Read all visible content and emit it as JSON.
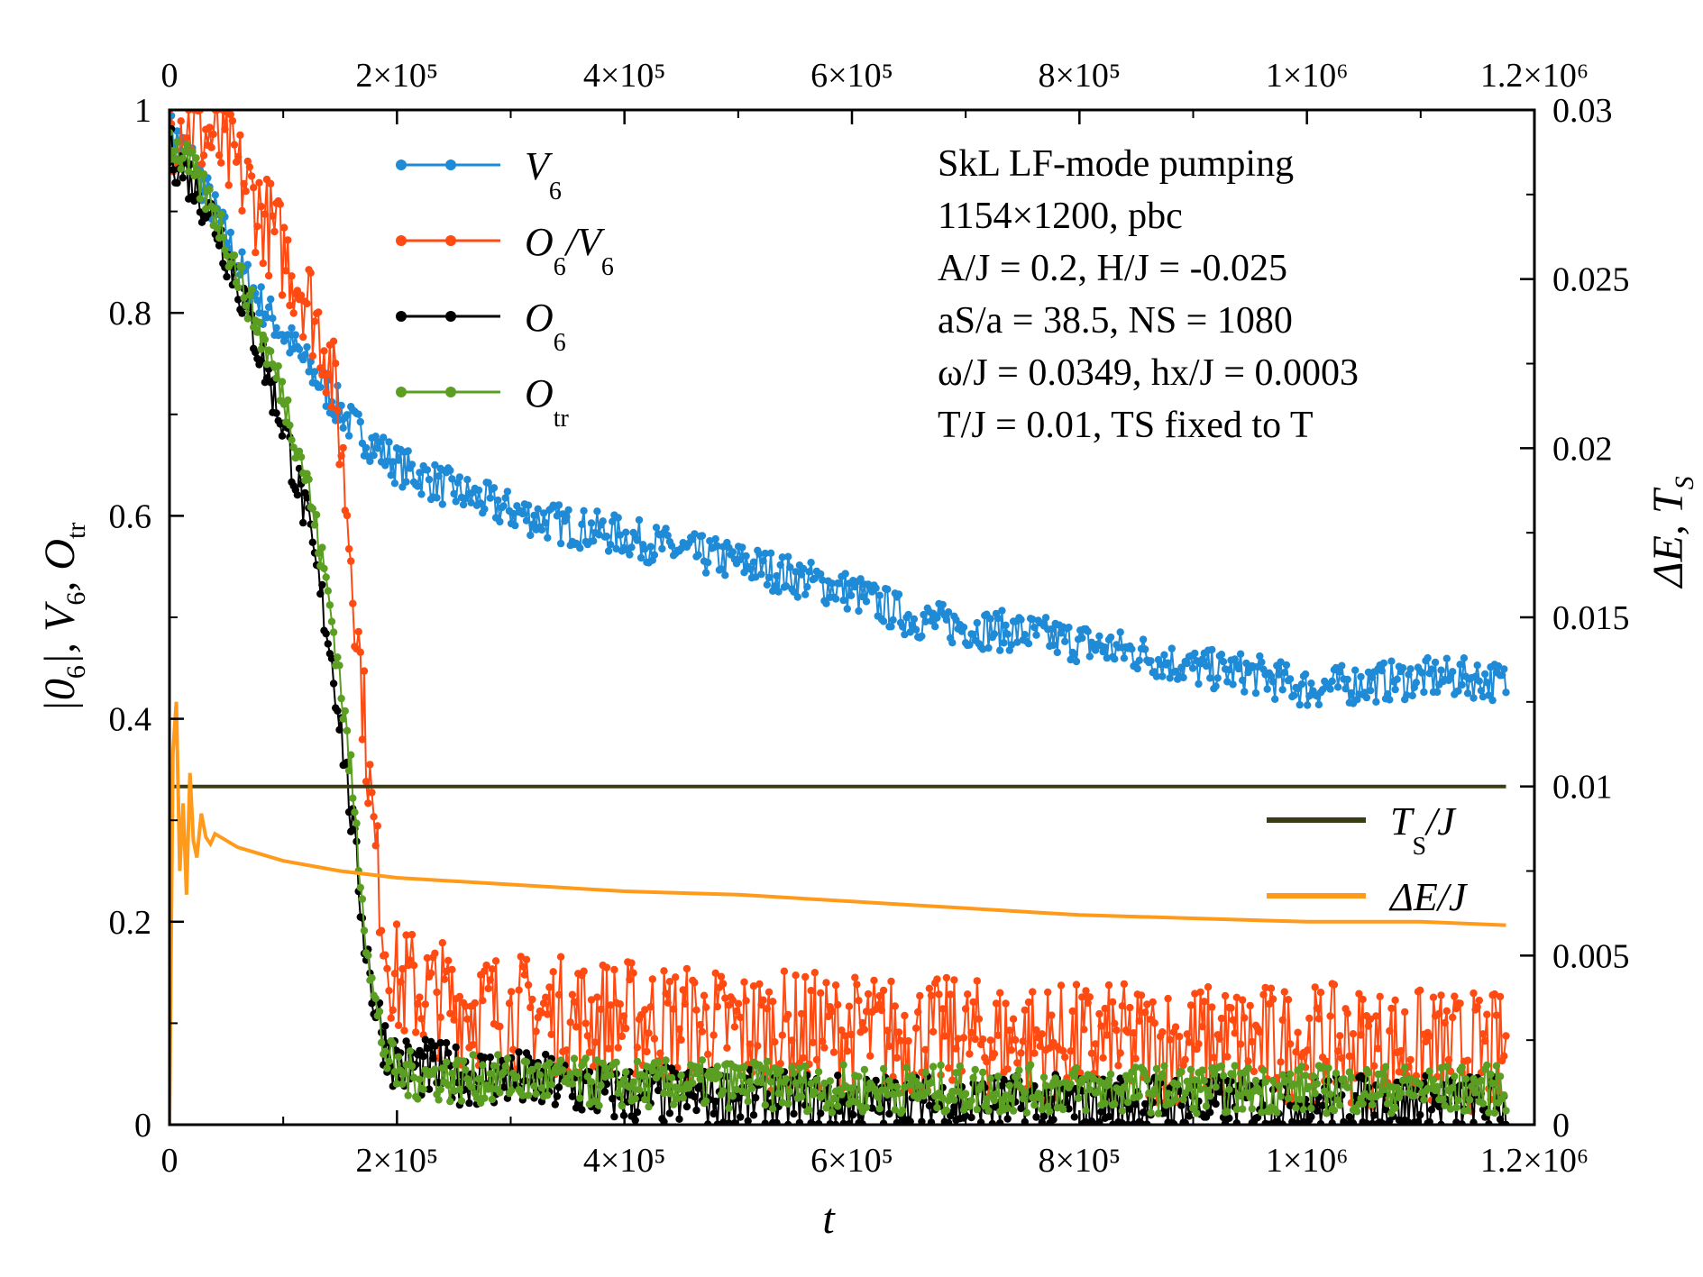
{
  "chart_data": {
    "type": "line",
    "x_axis": {
      "label": "t",
      "range": [
        0,
        1200000
      ],
      "ticks": [
        0,
        200000,
        400000,
        600000,
        800000,
        1000000,
        1200000
      ],
      "tick_labels": [
        "0",
        "2×10⁵",
        "4×10⁵",
        "6×10⁵",
        "8×10⁵",
        "1×10⁶",
        "1.2×10⁶"
      ]
    },
    "y_left": {
      "label": "|O6|, V6, Otr",
      "label_parts": [
        "|0",
        "6",
        "|, V",
        "6",
        ", O",
        "tr"
      ],
      "range": [
        0,
        1
      ],
      "ticks": [
        0,
        0.2,
        0.4,
        0.6,
        0.8,
        1
      ],
      "tick_labels": [
        "0",
        "0.2",
        "0.4",
        "0.6",
        "0.8",
        "1"
      ]
    },
    "y_right": {
      "label": "ΔE, TS",
      "label_parts": [
        "ΔE, T",
        "S"
      ],
      "range": [
        0,
        0.03
      ],
      "ticks": [
        0,
        0.005,
        0.01,
        0.015,
        0.02,
        0.025,
        0.03
      ],
      "tick_labels": [
        "0",
        "0.005",
        "0.01",
        "0.015",
        "0.02",
        "0.025",
        "0.03"
      ]
    },
    "annotations": [
      "SkL LF-mode pumping",
      "1154×1200, pbc",
      "A/J = 0.2, H/J = -0.025",
      "aS/a = 38.5, NS = 1080",
      "ω/J = 0.0349, hx/J = 0.0003",
      "T/J = 0.01, TS fixed to T"
    ],
    "series": [
      {
        "name": "V6",
        "label_main": "V",
        "label_sub": "6",
        "axis": "left",
        "color": "#1f8ad6",
        "style": "dots",
        "points": [
          [
            0,
            0.98
          ],
          [
            20000,
            0.95
          ],
          [
            40000,
            0.9
          ],
          [
            60000,
            0.85
          ],
          [
            80000,
            0.81
          ],
          [
            100000,
            0.78
          ],
          [
            120000,
            0.75
          ],
          [
            140000,
            0.72
          ],
          [
            160000,
            0.69
          ],
          [
            180000,
            0.67
          ],
          [
            200000,
            0.65
          ],
          [
            250000,
            0.625
          ],
          [
            300000,
            0.605
          ],
          [
            350000,
            0.59
          ],
          [
            400000,
            0.58
          ],
          [
            450000,
            0.565
          ],
          [
            500000,
            0.555
          ],
          [
            550000,
            0.54
          ],
          [
            600000,
            0.525
          ],
          [
            650000,
            0.5
          ],
          [
            700000,
            0.49
          ],
          [
            750000,
            0.485
          ],
          [
            800000,
            0.475
          ],
          [
            850000,
            0.465
          ],
          [
            900000,
            0.45
          ],
          [
            950000,
            0.445
          ],
          [
            1000000,
            0.43
          ],
          [
            1050000,
            0.435
          ],
          [
            1100000,
            0.44
          ],
          [
            1150000,
            0.44
          ],
          [
            1175000,
            0.435
          ]
        ],
        "noise": 0.02
      },
      {
        "name": "O6/V6",
        "label_main": "O",
        "label_sub": "6",
        "label_tail": "/V",
        "label_sub2": "6",
        "axis": "left",
        "color": "#ff4a12",
        "style": "dots",
        "points": [
          [
            0,
            0.99
          ],
          [
            20000,
            0.985
          ],
          [
            40000,
            0.97
          ],
          [
            60000,
            0.94
          ],
          [
            80000,
            0.9
          ],
          [
            100000,
            0.86
          ],
          [
            120000,
            0.82
          ],
          [
            140000,
            0.76
          ],
          [
            150000,
            0.68
          ],
          [
            160000,
            0.56
          ],
          [
            170000,
            0.42
          ],
          [
            180000,
            0.28
          ],
          [
            190000,
            0.18
          ],
          [
            200000,
            0.14
          ],
          [
            250000,
            0.12
          ],
          [
            300000,
            0.11
          ],
          [
            400000,
            0.105
          ],
          [
            500000,
            0.095
          ],
          [
            600000,
            0.09
          ],
          [
            700000,
            0.085
          ],
          [
            800000,
            0.08
          ],
          [
            900000,
            0.08
          ],
          [
            1000000,
            0.08
          ],
          [
            1100000,
            0.075
          ],
          [
            1175000,
            0.07
          ]
        ],
        "noise": 0.05
      },
      {
        "name": "O6",
        "label_main": "O",
        "label_sub": "6",
        "axis": "left",
        "color": "#000000",
        "style": "dots",
        "points": [
          [
            0,
            0.96
          ],
          [
            20000,
            0.93
          ],
          [
            40000,
            0.89
          ],
          [
            60000,
            0.83
          ],
          [
            80000,
            0.76
          ],
          [
            100000,
            0.69
          ],
          [
            120000,
            0.6
          ],
          [
            140000,
            0.48
          ],
          [
            150000,
            0.4
          ],
          [
            160000,
            0.3
          ],
          [
            170000,
            0.2
          ],
          [
            180000,
            0.12
          ],
          [
            190000,
            0.08
          ],
          [
            200000,
            0.06
          ],
          [
            250000,
            0.05
          ],
          [
            300000,
            0.045
          ],
          [
            400000,
            0.03
          ],
          [
            500000,
            0.025
          ],
          [
            600000,
            0.02
          ],
          [
            700000,
            0.02
          ],
          [
            800000,
            0.02
          ],
          [
            900000,
            0.02
          ],
          [
            1000000,
            0.02
          ],
          [
            1100000,
            0.02
          ],
          [
            1175000,
            0.02
          ]
        ],
        "noise": 0.025
      },
      {
        "name": "Otr",
        "label_main": "O",
        "label_sub": "tr",
        "axis": "left",
        "color": "#5a9e22",
        "style": "dots",
        "points": [
          [
            0,
            0.97
          ],
          [
            20000,
            0.94
          ],
          [
            40000,
            0.9
          ],
          [
            60000,
            0.84
          ],
          [
            80000,
            0.78
          ],
          [
            100000,
            0.72
          ],
          [
            120000,
            0.64
          ],
          [
            140000,
            0.52
          ],
          [
            150000,
            0.44
          ],
          [
            160000,
            0.34
          ],
          [
            170000,
            0.22
          ],
          [
            180000,
            0.12
          ],
          [
            190000,
            0.07
          ],
          [
            200000,
            0.05
          ],
          [
            250000,
            0.045
          ],
          [
            300000,
            0.045
          ],
          [
            400000,
            0.04
          ],
          [
            500000,
            0.04
          ],
          [
            600000,
            0.035
          ],
          [
            700000,
            0.035
          ],
          [
            800000,
            0.035
          ],
          [
            900000,
            0.035
          ],
          [
            1000000,
            0.035
          ],
          [
            1100000,
            0.035
          ],
          [
            1175000,
            0.035
          ]
        ],
        "noise": 0.02
      },
      {
        "name": "TS/J",
        "label_main": "T",
        "label_sub": "S",
        "label_tail": "/J",
        "axis": "right",
        "color": "#3a3d14",
        "style": "line",
        "points": [
          [
            0,
            0.01
          ],
          [
            1175000,
            0.01
          ]
        ]
      },
      {
        "name": "ΔE/J",
        "label_main": "ΔE/J",
        "axis": "right",
        "color": "#ff9a1a",
        "style": "line",
        "points": [
          [
            0,
            0.0
          ],
          [
            3000,
            0.011
          ],
          [
            6000,
            0.0125
          ],
          [
            9000,
            0.0075
          ],
          [
            12000,
            0.0095
          ],
          [
            15000,
            0.0068
          ],
          [
            18000,
            0.0104
          ],
          [
            21000,
            0.0084
          ],
          [
            24000,
            0.0079
          ],
          [
            28000,
            0.0092
          ],
          [
            32000,
            0.0085
          ],
          [
            36000,
            0.0083
          ],
          [
            40000,
            0.0086
          ],
          [
            50000,
            0.0084
          ],
          [
            60000,
            0.0082
          ],
          [
            80000,
            0.008
          ],
          [
            100000,
            0.0078
          ],
          [
            150000,
            0.0075
          ],
          [
            200000,
            0.0073
          ],
          [
            300000,
            0.0071
          ],
          [
            400000,
            0.0069
          ],
          [
            500000,
            0.0068
          ],
          [
            600000,
            0.0066
          ],
          [
            700000,
            0.0064
          ],
          [
            800000,
            0.0062
          ],
          [
            900000,
            0.0061
          ],
          [
            1000000,
            0.006
          ],
          [
            1100000,
            0.006
          ],
          [
            1175000,
            0.0059
          ]
        ]
      }
    ]
  }
}
